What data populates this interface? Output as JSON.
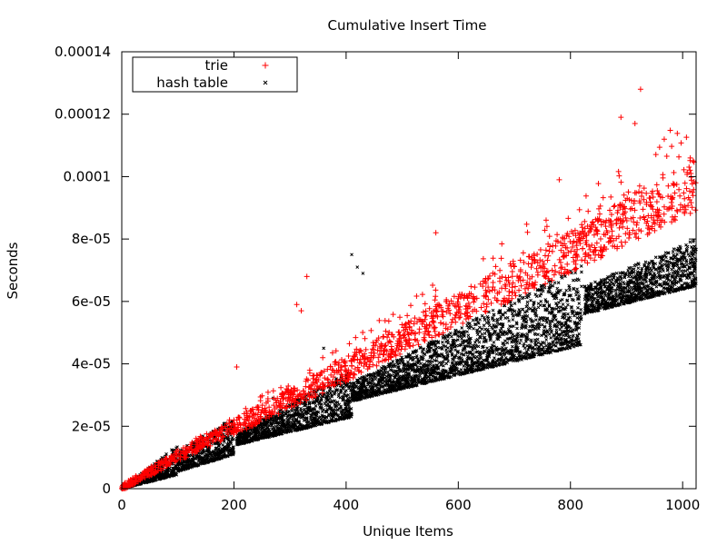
{
  "chart_data": {
    "type": "scatter",
    "title": "Cumulative Insert Time",
    "xlabel": "Unique Items",
    "ylabel": "Seconds",
    "xlim": [
      0,
      1024
    ],
    "ylim": [
      0,
      0.00014
    ],
    "x_ticks": [
      0,
      200,
      400,
      600,
      800,
      1000
    ],
    "x_tick_labels": [
      "0",
      "200",
      "400",
      "600",
      "800",
      "1000"
    ],
    "y_ticks": [
      0,
      2e-05,
      4e-05,
      6e-05,
      8e-05,
      0.0001,
      0.00012,
      0.00014
    ],
    "y_tick_labels": [
      "0",
      "2e-05",
      "4e-05",
      "6e-05",
      "8e-05",
      "0.0001",
      "0.00012",
      "0.00014"
    ],
    "grid": false,
    "legend_position": "top-left",
    "series": [
      {
        "name": "trie",
        "marker": "+",
        "color": "#ff0000",
        "trend": {
          "x": [
            0,
            100,
            200,
            400,
            600,
            800,
            1024
          ],
          "y": [
            0,
            1e-05,
            1.9e-05,
            3.7e-05,
            5.6e-05,
            7.4e-05,
            9.5e-05
          ]
        },
        "outliers": [
          {
            "x": 925,
            "y": 0.000128
          },
          {
            "x": 890,
            "y": 0.000119
          },
          {
            "x": 915,
            "y": 0.000117
          },
          {
            "x": 330,
            "y": 6.8e-05
          },
          {
            "x": 320,
            "y": 5.7e-05
          },
          {
            "x": 312,
            "y": 5.9e-05
          },
          {
            "x": 560,
            "y": 8.2e-05
          },
          {
            "x": 780,
            "y": 9.9e-05
          },
          {
            "x": 205,
            "y": 3.9e-05
          }
        ]
      },
      {
        "name": "hash table",
        "marker": "x",
        "color": "#000000",
        "bands": [
          {
            "x0": 0,
            "x1": 100,
            "low0": 0,
            "low1": 4.5e-06,
            "high0": 0,
            "high1": 1.4e-05
          },
          {
            "x0": 100,
            "x1": 200,
            "low0": 5.5e-06,
            "low1": 1.1e-05,
            "high0": 1.2e-05,
            "high1": 2.3e-05
          },
          {
            "x0": 205,
            "x1": 410,
            "low0": 1.4e-05,
            "low1": 2.3e-05,
            "high0": 1.8e-05,
            "high1": 3.8e-05
          },
          {
            "x0": 410,
            "x1": 820,
            "low0": 2.8e-05,
            "low1": 4.6e-05,
            "high0": 3.4e-05,
            "high1": 7.2e-05
          },
          {
            "x0": 825,
            "x1": 1024,
            "low0": 5.6e-05,
            "low1": 6.5e-05,
            "high0": 6.5e-05,
            "high1": 8e-05
          }
        ],
        "outliers": [
          {
            "x": 420,
            "y": 7.1e-05
          },
          {
            "x": 430,
            "y": 6.9e-05
          },
          {
            "x": 410,
            "y": 7.5e-05
          },
          {
            "x": 270,
            "y": 2.9e-05
          },
          {
            "x": 360,
            "y": 4.5e-05
          }
        ]
      }
    ]
  }
}
